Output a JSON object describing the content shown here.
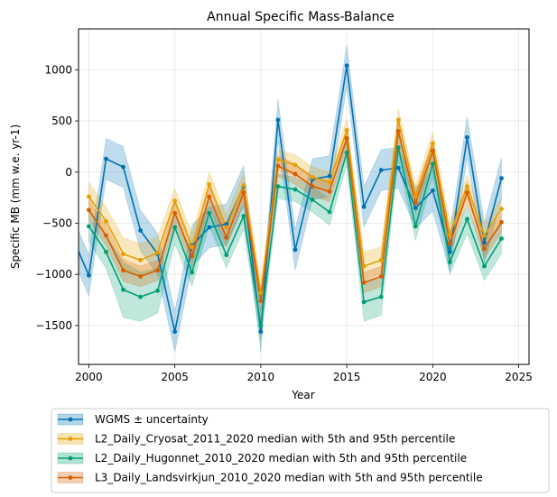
{
  "chart_data": {
    "type": "line",
    "title": "Annual Specific Mass-Balance",
    "xlabel": "Year",
    "ylabel": "Specific MB (mm w.e. yr-1)",
    "xlim": [
      1999.4,
      2025.6
    ],
    "ylim": [
      -1880,
      1400
    ],
    "xticks": [
      2000,
      2005,
      2010,
      2015,
      2020,
      2025
    ],
    "yticks": [
      -1500,
      -1000,
      -500,
      0,
      500,
      1000
    ],
    "yticks_labels": [
      "−1500",
      "−1000",
      "−500",
      "0",
      "500",
      "1000"
    ],
    "grid": true,
    "legend_position": "below plot",
    "series": [
      {
        "name": "WGMS ± uncertainty",
        "color": "#0072B2",
        "x": [
          1999,
          2000,
          2001,
          2002,
          2003,
          2004,
          2005,
          2006,
          2007,
          2008,
          2009,
          2010,
          2011,
          2012,
          2013,
          2014,
          2015,
          2016,
          2017,
          2018,
          2019,
          2020,
          2021,
          2022,
          2023,
          2024
        ],
        "values": [
          -620,
          -1010,
          130,
          50,
          -570,
          -800,
          -1560,
          -720,
          -540,
          -510,
          -140,
          -1560,
          510,
          -760,
          -70,
          -40,
          1040,
          -340,
          20,
          40,
          -350,
          -180,
          -780,
          340,
          -690,
          -60
        ],
        "lower": [
          -820,
          -1210,
          -70,
          -150,
          -770,
          -1000,
          -1760,
          -920,
          -740,
          -710,
          -340,
          -1760,
          310,
          -960,
          -270,
          -240,
          840,
          -540,
          -180,
          -160,
          -550,
          -380,
          -980,
          140,
          -890,
          -260
        ],
        "upper": [
          -420,
          -810,
          330,
          250,
          -370,
          -600,
          -1360,
          -520,
          -340,
          -310,
          60,
          -1360,
          710,
          -560,
          130,
          160,
          1240,
          -140,
          220,
          240,
          -150,
          20,
          -580,
          540,
          -490,
          140
        ]
      },
      {
        "name": "L2_Daily_Cryosat_2011_2020 median with 5th and 95th percentile",
        "color": "#E69F00",
        "x": [
          2000,
          2001,
          2002,
          2003,
          2004,
          2005,
          2006,
          2007,
          2008,
          2009,
          2010,
          2011,
          2012,
          2013,
          2014,
          2015,
          2016,
          2017,
          2018,
          2019,
          2020,
          2021,
          2022,
          2023,
          2024
        ],
        "values": [
          -240,
          -480,
          -800,
          -860,
          -790,
          -280,
          -730,
          -120,
          -540,
          -130,
          -1180,
          120,
          70,
          -50,
          -100,
          410,
          -920,
          -860,
          510,
          -240,
          280,
          -610,
          -140,
          -620,
          -360
        ],
        "lower": [
          -380,
          -620,
          -960,
          -1020,
          -950,
          -400,
          -860,
          -240,
          -660,
          -250,
          -1300,
          20,
          -30,
          -150,
          -200,
          300,
          -1060,
          -990,
          400,
          -350,
          170,
          -720,
          -250,
          -730,
          -470
        ],
        "upper": [
          -100,
          -340,
          -640,
          -700,
          -630,
          -160,
          -600,
          0,
          -420,
          -10,
          -1060,
          220,
          170,
          50,
          0,
          520,
          -780,
          -730,
          620,
          -130,
          390,
          -500,
          -30,
          -510,
          -250
        ]
      },
      {
        "name": "L2_Daily_Hugonnet_2010_2020 median with 5th and 95th percentile",
        "color": "#009E73",
        "x": [
          2000,
          2001,
          2002,
          2003,
          2004,
          2005,
          2006,
          2007,
          2008,
          2009,
          2010,
          2011,
          2012,
          2013,
          2014,
          2015,
          2016,
          2017,
          2018,
          2019,
          2020,
          2021,
          2022,
          2023,
          2024
        ],
        "values": [
          -530,
          -780,
          -1150,
          -1220,
          -1160,
          -540,
          -980,
          -400,
          -810,
          -430,
          -1500,
          -140,
          -170,
          -270,
          -390,
          190,
          -1270,
          -1220,
          240,
          -530,
          80,
          -880,
          -460,
          -920,
          -650
        ],
        "lower": [
          -680,
          -940,
          -1420,
          -1460,
          -1380,
          -700,
          -1120,
          -520,
          -940,
          -560,
          -1640,
          -260,
          -290,
          -390,
          -520,
          70,
          -1460,
          -1400,
          110,
          -670,
          -50,
          -1000,
          -600,
          -1060,
          -800
        ],
        "upper": [
          -380,
          -620,
          -880,
          -980,
          -940,
          -380,
          -840,
          -280,
          -680,
          -300,
          -1360,
          -20,
          -50,
          -150,
          -260,
          310,
          -1080,
          -1040,
          370,
          -390,
          210,
          -760,
          -320,
          -780,
          -500
        ]
      },
      {
        "name": "L3_Daily_Landsvirkjun_2010_2020 median with 5th and 95th percentile",
        "color": "#D55E00",
        "x": [
          2000,
          2001,
          2002,
          2003,
          2004,
          2005,
          2006,
          2007,
          2008,
          2009,
          2010,
          2011,
          2012,
          2013,
          2014,
          2015,
          2016,
          2017,
          2018,
          2019,
          2020,
          2021,
          2022,
          2023,
          2024
        ],
        "values": [
          -370,
          -620,
          -960,
          -1020,
          -960,
          -400,
          -820,
          -240,
          -640,
          -200,
          -1260,
          60,
          -20,
          -140,
          -190,
          330,
          -1080,
          -1020,
          400,
          -300,
          210,
          -700,
          -200,
          -750,
          -490
        ],
        "lower": [
          -470,
          -720,
          -1070,
          -1120,
          -1060,
          -500,
          -920,
          -340,
          -740,
          -300,
          -1360,
          -40,
          -120,
          -240,
          -290,
          230,
          -1180,
          -1120,
          300,
          -400,
          110,
          -800,
          -300,
          -850,
          -590
        ],
        "upper": [
          -270,
          -520,
          -850,
          -920,
          -860,
          -300,
          -720,
          -140,
          -540,
          -100,
          -1160,
          160,
          80,
          -40,
          -90,
          430,
          -980,
          -920,
          500,
          -200,
          310,
          -600,
          -100,
          -650,
          -390
        ]
      }
    ]
  }
}
